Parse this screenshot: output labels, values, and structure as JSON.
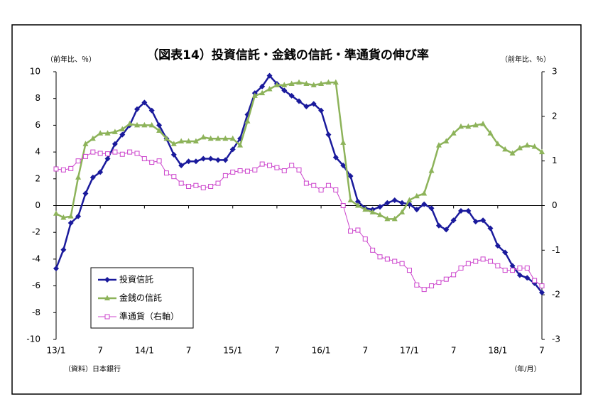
{
  "chart_data": {
    "type": "line",
    "title": "（図表14）投資信託・金銭の信託・準通貨の伸び率",
    "ylabel": "（前年比、％）",
    "y2label": "（前年比、％）",
    "source": "（資料）日本銀行",
    "xlabel": "（年/月）",
    "categories": [
      "13/1",
      null,
      null,
      null,
      null,
      null,
      "7",
      null,
      null,
      null,
      null,
      null,
      "14/1",
      null,
      null,
      null,
      null,
      null,
      "7",
      null,
      null,
      null,
      null,
      null,
      "15/1",
      null,
      null,
      null,
      null,
      null,
      "7",
      null,
      null,
      null,
      null,
      null,
      "16/1",
      null,
      null,
      null,
      null,
      null,
      "7",
      null,
      null,
      null,
      null,
      null,
      "17/1",
      null,
      null,
      null,
      null,
      null,
      "7",
      null,
      null,
      null,
      null,
      null,
      "18/1",
      null,
      null,
      null,
      null,
      null,
      "7"
    ],
    "ylim": [
      -10,
      10
    ],
    "yticks": [
      -10,
      -8,
      -6,
      -4,
      -2,
      0,
      2,
      4,
      6,
      8,
      10
    ],
    "y2lim": [
      -3,
      3
    ],
    "y2ticks": [
      -3,
      -2,
      -1,
      0,
      1,
      2,
      3
    ],
    "legend": "bottom-left",
    "series": [
      {
        "name": "投資信託",
        "color": "#1a1a9c",
        "marker": "diamond",
        "values": [
          -4.7,
          -3.3,
          -1.3,
          -0.8,
          0.9,
          2.1,
          2.5,
          3.5,
          4.6,
          5.3,
          6.0,
          7.2,
          7.7,
          7.1,
          6.0,
          5.0,
          3.8,
          3.0,
          3.3,
          3.3,
          3.5,
          3.5,
          3.4,
          3.4,
          4.2,
          5.0,
          6.8,
          8.4,
          8.9,
          9.7,
          9.1,
          8.6,
          8.2,
          7.8,
          7.4,
          7.6,
          7.1,
          5.3,
          3.6,
          3.0,
          2.2,
          0.3,
          -0.2,
          -0.3,
          -0.1,
          0.2,
          0.4,
          0.2,
          0.1,
          -0.3,
          0.1,
          -0.2,
          -1.5,
          -1.8,
          -1.1,
          -0.4,
          -0.4,
          -1.2,
          -1.1,
          -1.7,
          -3.0,
          -3.5,
          -4.5,
          -5.2,
          -5.4,
          -5.8,
          -6.5
        ]
      },
      {
        "name": "金銭の信託",
        "color": "#8db35a",
        "marker": "triangle",
        "values": [
          -0.6,
          -0.9,
          -0.8,
          2.1,
          4.6,
          5.0,
          5.4,
          5.4,
          5.5,
          5.7,
          6.1,
          6.0,
          6.0,
          6.0,
          5.6,
          5.0,
          4.6,
          4.8,
          4.8,
          4.8,
          5.1,
          5.0,
          5.0,
          5.0,
          5.0,
          4.5,
          6.3,
          8.2,
          8.4,
          8.7,
          9.0,
          9.0,
          9.1,
          9.2,
          9.1,
          9.0,
          9.1,
          9.2,
          9.2,
          4.7,
          0.4,
          0.0,
          -0.3,
          -0.5,
          -0.7,
          -1.0,
          -1.0,
          -0.5,
          0.4,
          0.7,
          0.9,
          2.6,
          4.5,
          4.8,
          5.4,
          5.9,
          5.9,
          6.0,
          6.1,
          5.4,
          4.6,
          4.2,
          3.9,
          4.3,
          4.5,
          4.4,
          4.0
        ]
      },
      {
        "name": "準通貨（右軸）",
        "color": "#cc44cc",
        "marker": "square",
        "axis": "y2",
        "values": [
          0.82,
          0.8,
          0.83,
          1.0,
          1.1,
          1.2,
          1.17,
          1.16,
          1.2,
          1.15,
          1.2,
          1.17,
          1.05,
          0.97,
          1.0,
          0.73,
          0.65,
          0.5,
          0.43,
          0.45,
          0.4,
          0.43,
          0.5,
          0.67,
          0.75,
          0.78,
          0.77,
          0.8,
          0.93,
          0.9,
          0.85,
          0.78,
          0.9,
          0.8,
          0.5,
          0.45,
          0.35,
          0.45,
          0.35,
          0.0,
          -0.57,
          -0.55,
          -0.75,
          -1.0,
          -1.15,
          -1.2,
          -1.25,
          -1.3,
          -1.45,
          -1.78,
          -1.88,
          -1.8,
          -1.72,
          -1.65,
          -1.55,
          -1.4,
          -1.3,
          -1.25,
          -1.2,
          -1.25,
          -1.35,
          -1.45,
          -1.45,
          -1.4,
          -1.4,
          -1.68,
          -1.8
        ]
      }
    ]
  }
}
